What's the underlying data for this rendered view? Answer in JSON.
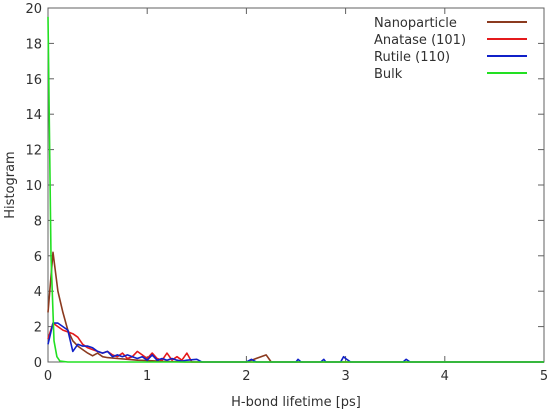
{
  "chart_data": {
    "type": "line",
    "xlabel": "H-bond lifetime [ps]",
    "ylabel": "Histogram",
    "xlim": [
      0,
      5
    ],
    "ylim": [
      0,
      20
    ],
    "x_ticks": [
      0,
      1,
      2,
      3,
      4,
      5
    ],
    "y_ticks": [
      0,
      2,
      4,
      6,
      8,
      10,
      12,
      14,
      16,
      18,
      20
    ],
    "x_tick_labels": [
      "0",
      "1",
      "2",
      "3",
      "4",
      "5"
    ],
    "y_tick_labels": [
      "0",
      "2",
      "4",
      "6",
      "8",
      "10",
      "12",
      "14",
      "16",
      "18",
      "20"
    ],
    "grid": false,
    "legend_position": "top-right",
    "series": [
      {
        "name": "Nanoparticle",
        "color": "#8b3a1f",
        "points": [
          [
            0,
            2.8
          ],
          [
            0.05,
            6.2
          ],
          [
            0.1,
            4.0
          ],
          [
            0.15,
            2.8
          ],
          [
            0.2,
            1.8
          ],
          [
            0.25,
            1.2
          ],
          [
            0.3,
            0.9
          ],
          [
            0.35,
            0.7
          ],
          [
            0.4,
            0.5
          ],
          [
            0.45,
            0.35
          ],
          [
            0.5,
            0.5
          ],
          [
            0.55,
            0.3
          ],
          [
            0.6,
            0.25
          ],
          [
            0.7,
            0.2
          ],
          [
            0.8,
            0.15
          ],
          [
            0.9,
            0.1
          ],
          [
            1.0,
            0.08
          ],
          [
            1.1,
            0.05
          ],
          [
            1.2,
            0.03
          ],
          [
            1.4,
            0
          ],
          [
            1.5,
            0
          ],
          [
            2.0,
            0
          ],
          [
            2.2,
            0.4
          ],
          [
            2.25,
            0
          ],
          [
            3.0,
            0
          ],
          [
            3.1,
            0
          ],
          [
            5.0,
            0
          ]
        ]
      },
      {
        "name": "Anatase (101)",
        "color": "#e41a1c",
        "points": [
          [
            0,
            1.3
          ],
          [
            0.05,
            2.2
          ],
          [
            0.1,
            2.0
          ],
          [
            0.15,
            1.8
          ],
          [
            0.2,
            1.7
          ],
          [
            0.25,
            1.6
          ],
          [
            0.3,
            1.4
          ],
          [
            0.35,
            1.0
          ],
          [
            0.4,
            0.8
          ],
          [
            0.45,
            0.7
          ],
          [
            0.5,
            0.6
          ],
          [
            0.55,
            0.5
          ],
          [
            0.6,
            0.6
          ],
          [
            0.65,
            0.4
          ],
          [
            0.7,
            0.3
          ],
          [
            0.75,
            0.5
          ],
          [
            0.8,
            0.2
          ],
          [
            0.85,
            0.3
          ],
          [
            0.9,
            0.6
          ],
          [
            0.95,
            0.4
          ],
          [
            1.0,
            0.2
          ],
          [
            1.05,
            0.5
          ],
          [
            1.1,
            0.2
          ],
          [
            1.15,
            0.1
          ],
          [
            1.2,
            0.5
          ],
          [
            1.25,
            0.1
          ],
          [
            1.3,
            0.3
          ],
          [
            1.35,
            0.1
          ],
          [
            1.4,
            0.5
          ],
          [
            1.45,
            0
          ],
          [
            1.5,
            0
          ],
          [
            5.0,
            0
          ]
        ]
      },
      {
        "name": "Rutile (110)",
        "color": "#1020c8",
        "points": [
          [
            0,
            1.0
          ],
          [
            0.05,
            2.2
          ],
          [
            0.1,
            2.2
          ],
          [
            0.15,
            2.0
          ],
          [
            0.2,
            1.8
          ],
          [
            0.25,
            0.6
          ],
          [
            0.3,
            1.0
          ],
          [
            0.35,
            0.9
          ],
          [
            0.4,
            0.9
          ],
          [
            0.45,
            0.8
          ],
          [
            0.5,
            0.6
          ],
          [
            0.55,
            0.5
          ],
          [
            0.6,
            0.6
          ],
          [
            0.65,
            0.3
          ],
          [
            0.7,
            0.4
          ],
          [
            0.75,
            0.3
          ],
          [
            0.8,
            0.4
          ],
          [
            0.85,
            0.3
          ],
          [
            0.9,
            0.2
          ],
          [
            0.95,
            0.3
          ],
          [
            1.0,
            0.1
          ],
          [
            1.05,
            0.4
          ],
          [
            1.1,
            0.1
          ],
          [
            1.15,
            0.2
          ],
          [
            1.2,
            0.1
          ],
          [
            1.25,
            0.2
          ],
          [
            1.3,
            0.1
          ],
          [
            1.35,
            0.05
          ],
          [
            1.4,
            0.1
          ],
          [
            1.5,
            0.15
          ],
          [
            1.55,
            0
          ],
          [
            2.0,
            0
          ],
          [
            2.05,
            0.15
          ],
          [
            2.1,
            0
          ],
          [
            2.5,
            0
          ],
          [
            2.52,
            0.15
          ],
          [
            2.55,
            0
          ],
          [
            2.75,
            0
          ],
          [
            2.78,
            0.15
          ],
          [
            2.8,
            0
          ],
          [
            2.95,
            0
          ],
          [
            2.98,
            0.3
          ],
          [
            3.0,
            0.2
          ],
          [
            3.05,
            0
          ],
          [
            3.58,
            0
          ],
          [
            3.61,
            0.15
          ],
          [
            3.65,
            0
          ],
          [
            5.0,
            0
          ]
        ]
      },
      {
        "name": "Bulk",
        "color": "#22e022",
        "points": [
          [
            0,
            19.5
          ],
          [
            0.03,
            6.0
          ],
          [
            0.06,
            1.2
          ],
          [
            0.09,
            0.3
          ],
          [
            0.12,
            0.05
          ],
          [
            0.2,
            0
          ],
          [
            5.0,
            0
          ]
        ]
      }
    ]
  }
}
